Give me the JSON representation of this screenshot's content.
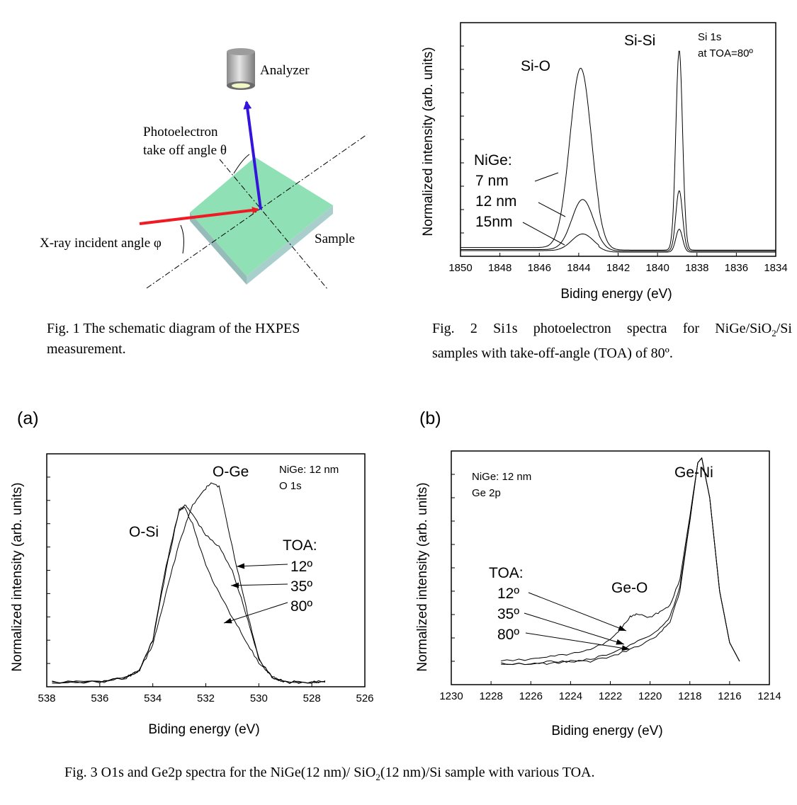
{
  "fig1": {
    "labels": {
      "analyzer": "Analyzer",
      "photo1": "Photoelectron",
      "photo2": "take off angle θ",
      "xray": "X-ray incident angle φ",
      "sample": "Sample"
    },
    "colors": {
      "sample_top": "#8fe0b4",
      "sample_side": "#9cc6c2",
      "xray": "#ef1a24",
      "photo": "#3414dd",
      "analyzer": "#bdbdbd"
    },
    "caption_line1": "Fig. 1 The schematic diagram of the HXPES",
    "caption_line2": "measurement."
  },
  "fig2_caption": {
    "a": "Fig. 2 Si1s photoelectron spectra for NiGe/SiO",
    "sub2": "2",
    "b": "/Si",
    "line2": "samples with take-off-angle (TOA) of 80º."
  },
  "fig3_caption": {
    "a": "Fig. 3 O1s and Ge2p spectra for the NiGe(12 nm)/ SiO",
    "sub2": "2",
    "b": "(12 nm)/Si sample with various TOA."
  },
  "panel_a_letter": "(a)",
  "panel_b_letter": "(b)",
  "chart_data": [
    {
      "id": "fig2",
      "type": "line",
      "title": "Si 1s photoelectron spectra",
      "xlabel": "Biding energy (eV)",
      "ylabel": "Normalized intensity (arb. units)",
      "xlim": [
        1850,
        1834
      ],
      "ylim": [
        0,
        1.12
      ],
      "xticks": [
        1850,
        1848,
        1846,
        1844,
        1842,
        1840,
        1838,
        1836,
        1834
      ],
      "annotations": {
        "sio": "Si-O",
        "sisi": "Si-Si",
        "info1": "Si 1s",
        "info2": "at TOA=80º",
        "nige": "NiGe:",
        "l7": "7 nm",
        "l12": "12 nm",
        "l15": "15nm"
      },
      "series": [
        {
          "name": "7 nm",
          "baseline": 0.03,
          "peaks": [
            [
              1843.9,
              0.86,
              0.55
            ],
            [
              1838.9,
              0.96,
              0.17
            ]
          ]
        },
        {
          "name": "12 nm",
          "baseline": 0.025,
          "peaks": [
            [
              1843.8,
              0.24,
              0.55
            ],
            [
              1838.9,
              0.29,
              0.17
            ]
          ]
        },
        {
          "name": "15nm",
          "baseline": 0.02,
          "peaks": [
            [
              1843.8,
              0.08,
              0.55
            ],
            [
              1838.9,
              0.11,
              0.17
            ]
          ]
        }
      ]
    },
    {
      "id": "fig3a",
      "type": "line",
      "title": "O 1s spectra",
      "xlabel": "Biding energy (eV)",
      "ylabel": "Normalized intensity (arb. units)",
      "xlim": [
        538,
        526
      ],
      "ylim": [
        0,
        1.0
      ],
      "xticks": [
        538,
        536,
        534,
        532,
        530,
        528,
        526
      ],
      "annotations": {
        "oge": "O-Ge",
        "osi": "O-Si",
        "info1": "NiGe: 12 nm",
        "info2": "O 1s",
        "toa": "TOA:",
        "t12": "12º",
        "t35": "35º",
        "t80": "80º"
      },
      "series": [
        {
          "name": "12º",
          "x": [
            537.8,
            536,
            535,
            534.5,
            534,
            533.5,
            533,
            532.5,
            532,
            531.8,
            531.5,
            531,
            530.5,
            530,
            529.5,
            529,
            528,
            527.5
          ],
          "y": [
            0.02,
            0.02,
            0.04,
            0.07,
            0.18,
            0.4,
            0.62,
            0.78,
            0.85,
            0.88,
            0.86,
            0.6,
            0.35,
            0.12,
            0.04,
            0.02,
            0.02,
            0.02
          ]
        },
        {
          "name": "35º",
          "x": [
            537.8,
            536,
            535,
            534.5,
            534,
            533.5,
            533,
            532.8,
            532.5,
            532,
            531.5,
            531,
            530.5,
            530,
            529.5,
            529,
            528,
            527.5
          ],
          "y": [
            0.02,
            0.02,
            0.04,
            0.07,
            0.2,
            0.5,
            0.76,
            0.78,
            0.74,
            0.65,
            0.6,
            0.5,
            0.32,
            0.12,
            0.04,
            0.02,
            0.02,
            0.02
          ]
        },
        {
          "name": "80º",
          "x": [
            537.8,
            536,
            535,
            534.5,
            534,
            533.5,
            533,
            532.8,
            532.5,
            532,
            531.5,
            531,
            530.5,
            530,
            529.5,
            529,
            528,
            527.5
          ],
          "y": [
            0.02,
            0.02,
            0.04,
            0.07,
            0.2,
            0.52,
            0.76,
            0.77,
            0.7,
            0.52,
            0.4,
            0.3,
            0.2,
            0.1,
            0.04,
            0.02,
            0.02,
            0.02
          ]
        }
      ]
    },
    {
      "id": "fig3b",
      "type": "line",
      "title": "Ge 2p spectra",
      "xlabel": "Biding energy (eV)",
      "ylabel": "Normalized intensity (arb. units)",
      "xlim": [
        1230,
        1214
      ],
      "ylim": [
        0,
        1.0
      ],
      "xticks": [
        1230,
        1228,
        1226,
        1224,
        1222,
        1220,
        1218,
        1216,
        1214
      ],
      "annotations": {
        "info1": "NiGe: 12 nm",
        "info2": "Ge 2p",
        "geni": "Ge-Ni",
        "geo": "Ge-O",
        "toa": "TOA:",
        "t12": "12º",
        "t35": "35º",
        "t80": "80º"
      },
      "series": [
        {
          "name": "12º",
          "x": [
            1227.5,
            1226,
            1225,
            1224,
            1223,
            1222,
            1221.5,
            1221,
            1220.7,
            1220,
            1219.5,
            1219,
            1218.5,
            1218,
            1217.6,
            1217.4,
            1217,
            1216.5,
            1216,
            1215.5
          ],
          "y": [
            0.1,
            0.11,
            0.12,
            0.13,
            0.15,
            0.19,
            0.24,
            0.29,
            0.3,
            0.29,
            0.31,
            0.34,
            0.45,
            0.72,
            0.95,
            0.97,
            0.8,
            0.4,
            0.18,
            0.1
          ]
        },
        {
          "name": "35º",
          "x": [
            1227.5,
            1226,
            1225,
            1224,
            1223,
            1222,
            1221,
            1220,
            1219.5,
            1219,
            1218.5,
            1218,
            1217.6,
            1217.4,
            1217,
            1216.5,
            1216,
            1215.5
          ],
          "y": [
            0.09,
            0.09,
            0.1,
            0.1,
            0.11,
            0.13,
            0.17,
            0.21,
            0.24,
            0.29,
            0.42,
            0.7,
            0.95,
            0.97,
            0.8,
            0.4,
            0.18,
            0.1
          ]
        },
        {
          "name": "80º",
          "x": [
            1227.5,
            1226,
            1225,
            1224,
            1223,
            1222,
            1221,
            1220,
            1219.5,
            1219,
            1218.5,
            1218,
            1217.6,
            1217.4,
            1217,
            1216.5,
            1216,
            1215.5
          ],
          "y": [
            0.09,
            0.09,
            0.09,
            0.1,
            0.1,
            0.12,
            0.15,
            0.19,
            0.22,
            0.27,
            0.4,
            0.7,
            0.95,
            0.97,
            0.8,
            0.4,
            0.18,
            0.1
          ]
        }
      ]
    }
  ]
}
